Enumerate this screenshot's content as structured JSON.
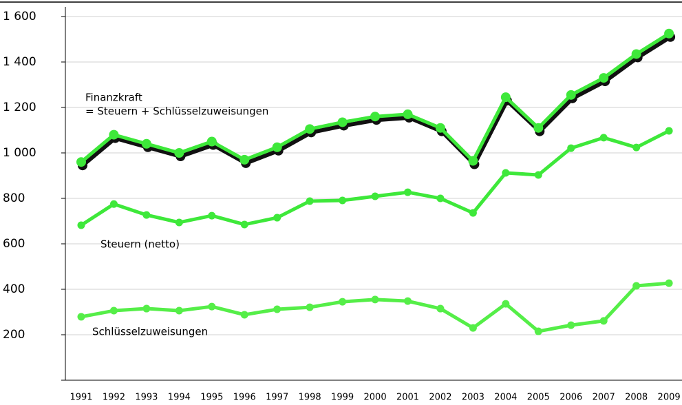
{
  "chart_data": {
    "type": "line",
    "categories": [
      "1991",
      "1992",
      "1993",
      "1994",
      "1995",
      "1996",
      "1997",
      "1998",
      "1999",
      "2000",
      "2001",
      "2002",
      "2003",
      "2004",
      "2005",
      "2006",
      "2007",
      "2008",
      "2009"
    ],
    "series": [
      {
        "name": "Finanzkraft",
        "color": "#3ee83a",
        "shadow": true,
        "values": [
          960,
          1080,
          1040,
          1000,
          1050,
          970,
          1025,
          1105,
          1135,
          1160,
          1170,
          1110,
          965,
          1245,
          1110,
          1255,
          1330,
          1435,
          1525
        ]
      },
      {
        "name": "Steuern (netto)",
        "color": "#3ee83a",
        "values": [
          682,
          775,
          727,
          694,
          724,
          685,
          715,
          788,
          791,
          809,
          827,
          800,
          736,
          912,
          903,
          1021,
          1067,
          1024,
          1097
        ]
      },
      {
        "name": "Schlüsselzuweisungen",
        "color": "#55ee48",
        "values": [
          279,
          306,
          315,
          306,
          324,
          288,
          312,
          321,
          345,
          355,
          348,
          315,
          230,
          336,
          215,
          242,
          261,
          415,
          427
        ]
      }
    ],
    "annotations": [
      {
        "text": "Finanzkraft",
        "series": 0
      },
      {
        "text": "= Steuern + Schlüsselzuweisungen",
        "series": 0
      },
      {
        "text": "Steuern (netto)",
        "series": 1
      },
      {
        "text": "Schlüsselzuweisungen",
        "series": 2
      }
    ],
    "ylim": [
      0,
      1600
    ],
    "yticks": [
      {
        "value": 200,
        "label": "200"
      },
      {
        "value": 400,
        "label": "400"
      },
      {
        "value": 600,
        "label": "600"
      },
      {
        "value": 800,
        "label": "800"
      },
      {
        "value": 1000,
        "label": "1 000"
      },
      {
        "value": 1200,
        "label": "1 200"
      },
      {
        "value": 1400,
        "label": "1 400"
      },
      {
        "value": 1600,
        "label": "1 600"
      }
    ],
    "grid": true
  }
}
